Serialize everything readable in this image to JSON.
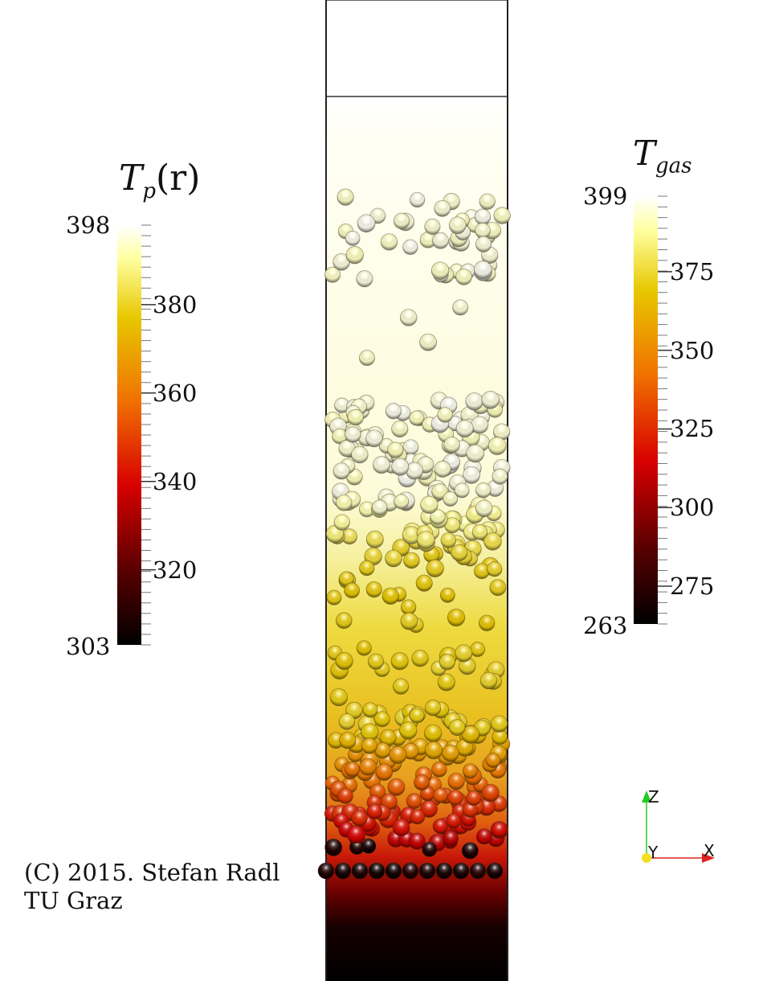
{
  "colorbars": {
    "particle": {
      "title": "T",
      "title_sub": "p",
      "title_suffix": "(r)",
      "max_label": "398",
      "min_label": "303",
      "min": 303,
      "max": 398,
      "ticks": [
        "380",
        "360",
        "340",
        "320"
      ],
      "tick_values": [
        380,
        360,
        340,
        320
      ]
    },
    "gas": {
      "title": "T",
      "title_sub": "gas",
      "max_label": "399",
      "min_label": "263",
      "min": 263,
      "max": 399,
      "ticks": [
        "375",
        "350",
        "325",
        "300",
        "275"
      ],
      "tick_values": [
        375,
        350,
        325,
        300,
        275
      ]
    }
  },
  "credit": {
    "line1": "(C) 2015. Stefan Radl",
    "line2": "TU Graz"
  },
  "axes": {
    "z_label": "Z",
    "y_label": "Y",
    "x_label": "X",
    "z_color": "#22cc22",
    "x_color": "#dd2222",
    "y_color": "#f0e020"
  },
  "colormap": [
    "#000000",
    "#5a0000",
    "#d80000",
    "#f07000",
    "#e8c800",
    "#ffffa0",
    "#ffffff"
  ]
}
